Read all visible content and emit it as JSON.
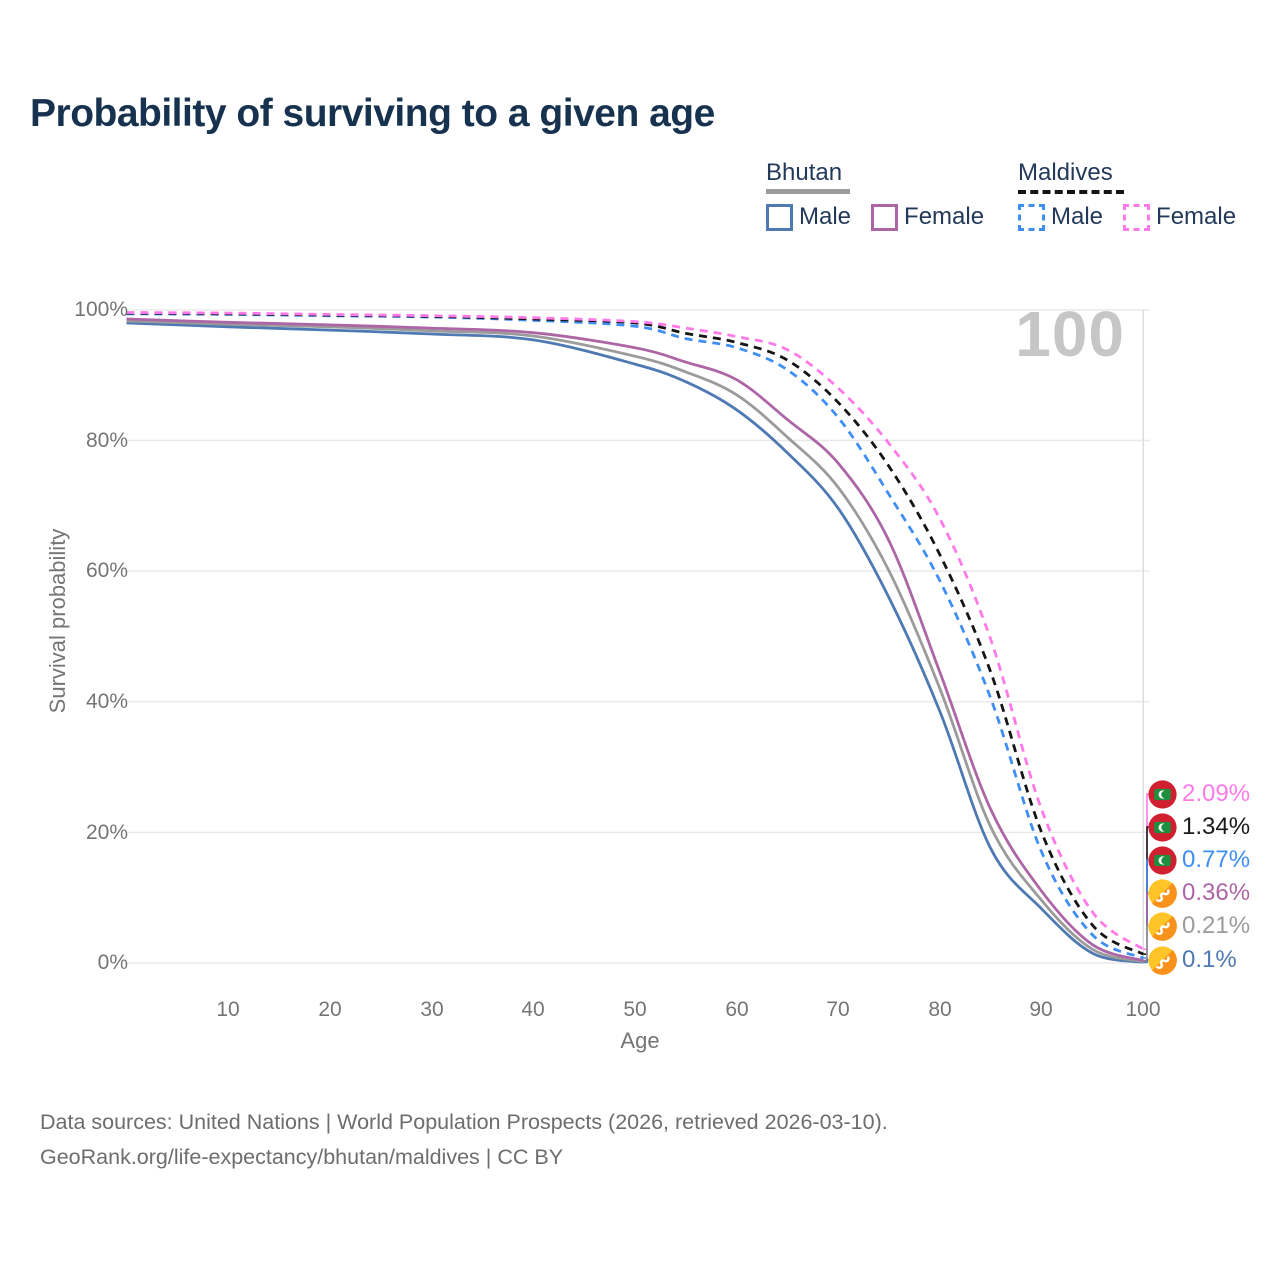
{
  "title": "Probability of surviving to a given age",
  "watermark": "100",
  "legend": {
    "groups": [
      {
        "name": "Bhutan",
        "line_style": "solid",
        "underline_color": "#9b9b9b",
        "items": [
          {
            "label": "Male",
            "color": "#4e79b2"
          },
          {
            "label": "Female",
            "color": "#ad66a5"
          }
        ]
      },
      {
        "name": "Maldives",
        "line_style": "dashed",
        "underline_color": "#141414",
        "items": [
          {
            "label": "Male",
            "color": "#3f8ef3"
          },
          {
            "label": "Female",
            "color": "#ff7ae8"
          }
        ]
      }
    ]
  },
  "y_axis": {
    "title": "Survival probability",
    "ticks": [
      "100%",
      "80%",
      "60%",
      "40%",
      "20%",
      "0%"
    ]
  },
  "x_axis": {
    "title": "Age",
    "ticks": [
      "10",
      "20",
      "30",
      "40",
      "50",
      "60",
      "70",
      "80",
      "90",
      "100"
    ]
  },
  "end_labels": [
    {
      "value": "2.09%",
      "pct": 2.09,
      "color": "#ff7ae8",
      "flag": "maldives",
      "series": "Maldives Female"
    },
    {
      "value": "1.34%",
      "pct": 1.34,
      "color": "#1a1a1a",
      "flag": "maldives",
      "series": "Maldives Both sexes"
    },
    {
      "value": "0.77%",
      "pct": 0.77,
      "color": "#3f8ef3",
      "flag": "maldives",
      "series": "Maldives Male"
    },
    {
      "value": "0.36%",
      "pct": 0.36,
      "color": "#ad66a5",
      "flag": "bhutan",
      "series": "Bhutan Female"
    },
    {
      "value": "0.21%",
      "pct": 0.21,
      "color": "#9b9b9b",
      "flag": "bhutan",
      "series": "Bhutan Both sexes"
    },
    {
      "value": "0.1%",
      "pct": 0.1,
      "color": "#4e79b2",
      "flag": "bhutan",
      "series": "Bhutan Male"
    }
  ],
  "footer": {
    "line1": "Data sources: United Nations | World Population Prospects (2026, retrieved 2026-03-10).",
    "line2": "GeoRank.org/life-expectancy/bhutan/maldives | CC BY"
  },
  "chart_data": {
    "type": "line",
    "title": "Probability of surviving to a given age",
    "xlabel": "Age",
    "ylabel": "Survival probability",
    "xlim": [
      0,
      100
    ],
    "ylim": [
      0,
      100
    ],
    "grid": true,
    "legend_position": "top-right",
    "x": [
      0,
      10,
      20,
      30,
      40,
      50,
      55,
      60,
      65,
      70,
      75,
      80,
      85,
      90,
      95,
      100
    ],
    "series": [
      {
        "name": "Bhutan Male",
        "country": "Bhutan",
        "sex": "Male",
        "color": "#4e79b2",
        "dash": "solid",
        "end_label": "0.1%",
        "values": [
          98.0,
          97.4,
          96.9,
          96.3,
          95.4,
          91.7,
          89.0,
          84.7,
          78.1,
          69.6,
          55.9,
          38.5,
          17.5,
          8.3,
          1.5,
          0.1
        ]
      },
      {
        "name": "Bhutan Both sexes",
        "country": "Bhutan",
        "sex": "Both",
        "color": "#9b9b9b",
        "dash": "solid",
        "end_label": "0.21%",
        "values": [
          98.3,
          97.8,
          97.4,
          96.8,
          96.0,
          92.9,
          90.5,
          87.0,
          80.5,
          72.8,
          60.0,
          42.0,
          20.8,
          9.6,
          2.1,
          0.21
        ]
      },
      {
        "name": "Bhutan Female",
        "country": "Bhutan",
        "sex": "Female",
        "color": "#ad66a5",
        "dash": "solid",
        "end_label": "0.36%",
        "values": [
          98.6,
          98.1,
          97.7,
          97.2,
          96.5,
          94.2,
          92.0,
          89.3,
          83.2,
          76.5,
          64.6,
          44.5,
          23.5,
          11.0,
          2.8,
          0.36
        ]
      },
      {
        "name": "Maldives Male",
        "country": "Maldives",
        "sex": "Male",
        "color": "#3f8ef3",
        "dash": "dashed",
        "end_label": "0.77%",
        "values": [
          99.4,
          99.3,
          99.1,
          98.9,
          98.4,
          97.5,
          95.6,
          94.2,
          90.8,
          83.5,
          71.7,
          58.5,
          40.5,
          17.0,
          4.3,
          0.77
        ]
      },
      {
        "name": "Maldives Both sexes",
        "country": "Maldives",
        "sex": "Both",
        "color": "#141414",
        "dash": "dashed",
        "end_label": "1.34%",
        "values": [
          99.5,
          99.4,
          99.2,
          99.0,
          98.6,
          98.0,
          96.4,
          95.0,
          92.3,
          85.8,
          76.0,
          62.5,
          44.5,
          20.0,
          5.8,
          1.34
        ]
      },
      {
        "name": "Maldives Female",
        "country": "Maldives",
        "sex": "Female",
        "color": "#ff7ae8",
        "dash": "dashed",
        "end_label": "2.09%",
        "values": [
          99.6,
          99.5,
          99.3,
          99.1,
          98.8,
          98.2,
          97.2,
          95.9,
          93.9,
          88.0,
          79.5,
          68.0,
          49.5,
          23.5,
          7.8,
          2.09
        ]
      }
    ]
  }
}
